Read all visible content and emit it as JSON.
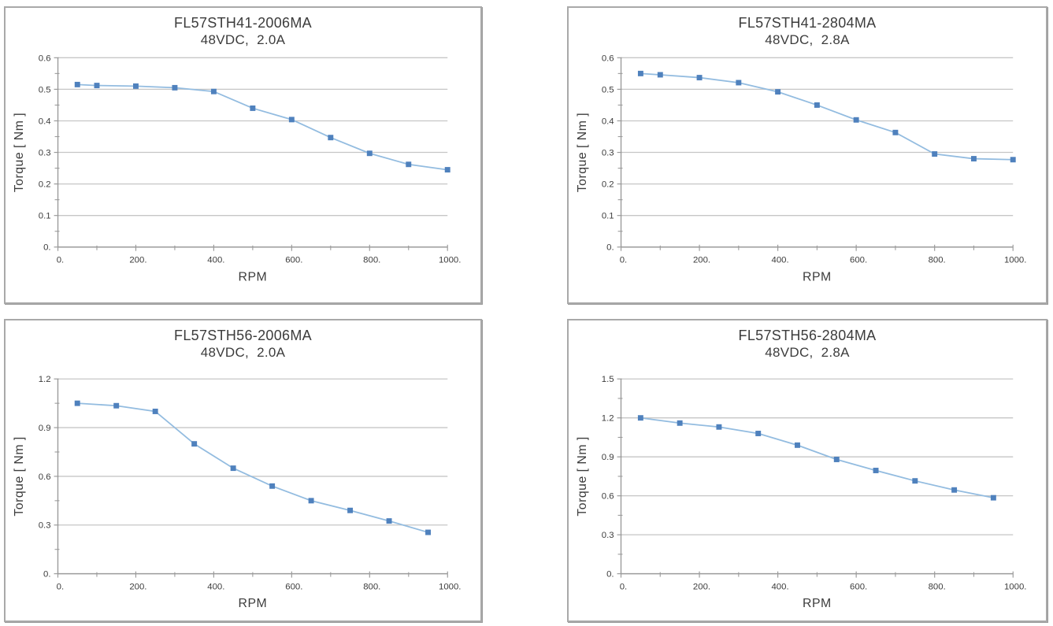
{
  "style": {
    "marker_color": "#4f81bd",
    "line_color": "#93bce0",
    "grid_color": "#c6c6c6",
    "axis_color": "#9b9b9b",
    "panel_border_color": "#a9a9a9",
    "text_color": "#3c3c3c",
    "background": "#ffffff"
  },
  "chart_data": [
    {
      "type": "line",
      "title": "FL57STH41-2006MA",
      "subtitle": "48VDC,  2.0A",
      "xlabel": "RPM",
      "ylabel": "Torque [ Nm ]",
      "legend": "none",
      "grid": "horizontal-major",
      "marker": "square",
      "xlim": [
        0,
        1000
      ],
      "ylim": [
        0,
        0.6
      ],
      "x": [
        50,
        100,
        200,
        300,
        400,
        500,
        600,
        700,
        800,
        900,
        1000
      ],
      "y": [
        0.515,
        0.512,
        0.51,
        0.505,
        0.493,
        0.44,
        0.404,
        0.347,
        0.297,
        0.262,
        0.245
      ],
      "x_tick_values": [
        0,
        200,
        400,
        600,
        800,
        1000
      ],
      "x_tick_labels": [
        "0.",
        "200.",
        "400.",
        "600.",
        "800.",
        "1000."
      ],
      "x_minor_ticks": [
        100,
        300,
        500,
        700,
        900
      ],
      "y_tick_values": [
        0,
        0.1,
        0.2,
        0.3,
        0.4,
        0.5,
        0.6
      ],
      "y_tick_labels": [
        "0.",
        "0.1",
        "0.2",
        "0.3",
        "0.4",
        "0.5",
        "0.6"
      ],
      "y_minor_ticks": [
        0.05,
        0.15,
        0.25,
        0.35,
        0.45,
        0.55
      ]
    },
    {
      "type": "line",
      "title": "FL57STH41-2804MA",
      "subtitle": "48VDC,  2.8A",
      "xlabel": "RPM",
      "ylabel": "Torque [ Nm ]",
      "legend": "none",
      "grid": "horizontal-major",
      "marker": "square",
      "xlim": [
        0,
        1000
      ],
      "ylim": [
        0,
        0.6
      ],
      "x": [
        50,
        100,
        200,
        300,
        400,
        500,
        600,
        700,
        800,
        900,
        1000
      ],
      "y": [
        0.55,
        0.546,
        0.537,
        0.521,
        0.492,
        0.45,
        0.403,
        0.363,
        0.295,
        0.28,
        0.277
      ],
      "x_tick_values": [
        0,
        200,
        400,
        600,
        800,
        1000
      ],
      "x_tick_labels": [
        "0.",
        "200.",
        "400.",
        "600.",
        "800.",
        "1000."
      ],
      "x_minor_ticks": [
        100,
        300,
        500,
        700,
        900
      ],
      "y_tick_values": [
        0,
        0.1,
        0.2,
        0.3,
        0.4,
        0.5,
        0.6
      ],
      "y_tick_labels": [
        "0.",
        "0.1",
        "0.2",
        "0.3",
        "0.4",
        "0.5",
        "0.6"
      ],
      "y_minor_ticks": [
        0.05,
        0.15,
        0.25,
        0.35,
        0.45,
        0.55
      ]
    },
    {
      "type": "line",
      "title": "FL57STH56-2006MA",
      "subtitle": "48VDC,  2.0A",
      "xlabel": "RPM",
      "ylabel": "Torque [ Nm ]",
      "legend": "none",
      "grid": "horizontal-major",
      "marker": "square",
      "xlim": [
        0,
        1000
      ],
      "ylim": [
        0,
        1.2
      ],
      "x": [
        50,
        150,
        250,
        350,
        450,
        550,
        650,
        750,
        850,
        950
      ],
      "y": [
        1.05,
        1.035,
        1.0,
        0.8,
        0.65,
        0.54,
        0.45,
        0.39,
        0.325,
        0.255
      ],
      "x_tick_values": [
        0,
        200,
        400,
        600,
        800,
        1000
      ],
      "x_tick_labels": [
        "0.",
        "200.",
        "400.",
        "600.",
        "800.",
        "1000."
      ],
      "x_minor_ticks": [
        100,
        300,
        500,
        700,
        900
      ],
      "y_tick_values": [
        0,
        0.3,
        0.6,
        0.9,
        1.2
      ],
      "y_tick_labels": [
        "0.",
        "0.3",
        "0.6",
        "0.9",
        "1.2"
      ],
      "y_minor_ticks": [
        0.15,
        0.45,
        0.75,
        1.05
      ]
    },
    {
      "type": "line",
      "title": "FL57STH56-2804MA",
      "subtitle": "48VDC,  2.8A",
      "xlabel": "RPM",
      "ylabel": "Torque [ Nm ]",
      "legend": "none",
      "grid": "horizontal-major",
      "marker": "square",
      "xlim": [
        0,
        1000
      ],
      "ylim": [
        0,
        1.5
      ],
      "x": [
        50,
        150,
        250,
        350,
        450,
        550,
        650,
        750,
        850,
        950
      ],
      "y": [
        1.2,
        1.16,
        1.13,
        1.08,
        0.99,
        0.88,
        0.795,
        0.715,
        0.645,
        0.585
      ],
      "x_tick_values": [
        0,
        200,
        400,
        600,
        800,
        1000
      ],
      "x_tick_labels": [
        "0.",
        "200.",
        "400.",
        "600.",
        "800.",
        "1000."
      ],
      "x_minor_ticks": [
        100,
        300,
        500,
        700,
        900
      ],
      "y_tick_values": [
        0,
        0.3,
        0.6,
        0.9,
        1.2,
        1.5
      ],
      "y_tick_labels": [
        "0.",
        "0.3",
        "0.6",
        "0.9",
        "1.2",
        "1.5"
      ],
      "y_minor_ticks": [
        0.15,
        0.45,
        0.75,
        1.05,
        1.35
      ]
    }
  ]
}
